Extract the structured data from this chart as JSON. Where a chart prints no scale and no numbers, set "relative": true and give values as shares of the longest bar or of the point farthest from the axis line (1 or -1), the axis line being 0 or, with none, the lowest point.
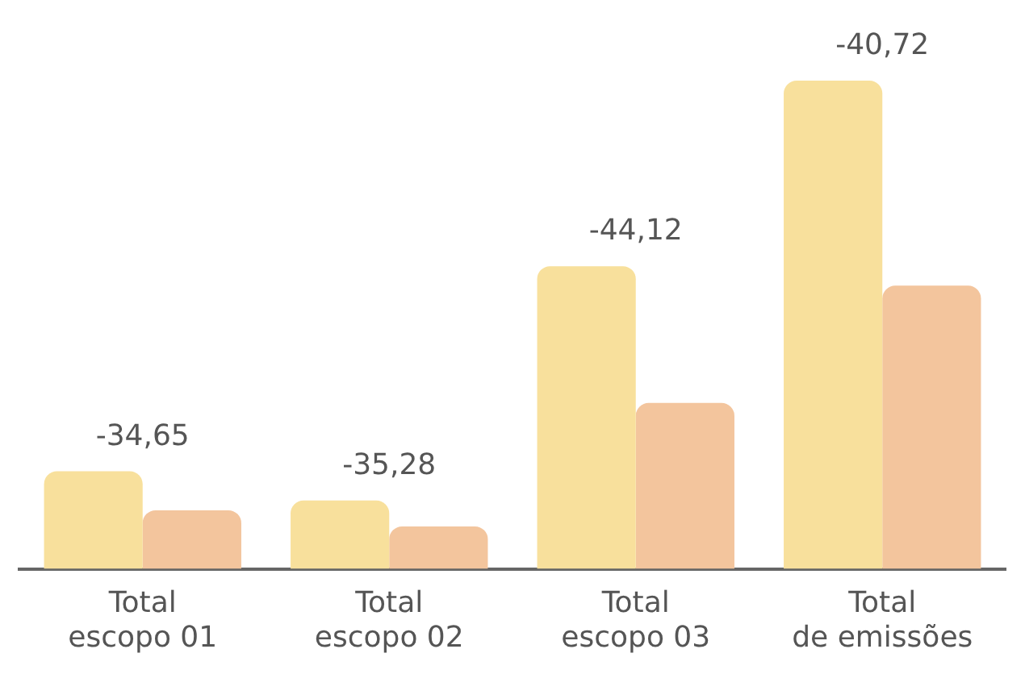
{
  "chart_data": {
    "type": "bar",
    "relative": true,
    "categories": [
      "Total escopo 01",
      "Total escopo 02",
      "Total escopo 03",
      "Total de emissões"
    ],
    "series": [
      {
        "color": "#f8e09c",
        "values": [
          0.2,
          0.14,
          0.62,
          1
        ]
      },
      {
        "color": "#f3c59d",
        "values": [
          0.12,
          0.087,
          0.34,
          0.58
        ]
      }
    ],
    "annotations": [
      "-34,65",
      "-35,28",
      "-44,12",
      "-40,72"
    ],
    "grid": false,
    "legend": false
  }
}
